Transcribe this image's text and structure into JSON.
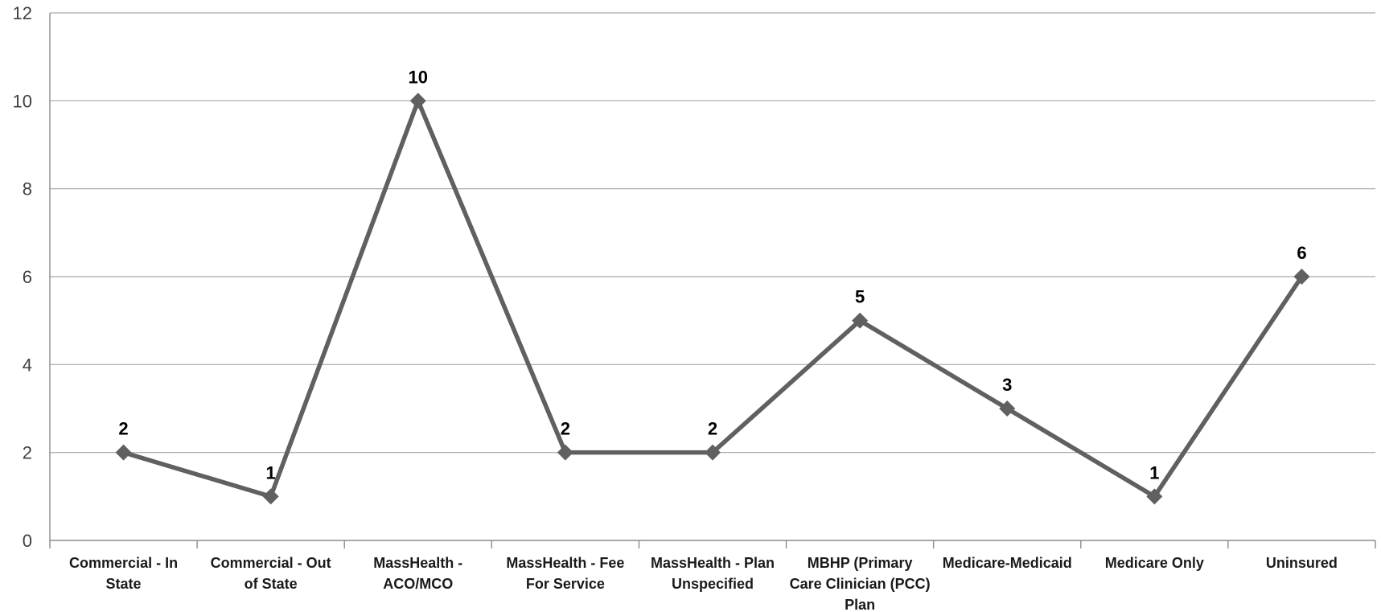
{
  "chart_data": {
    "type": "line",
    "title": "",
    "xlabel": "",
    "ylabel": "",
    "ylim": [
      0,
      12
    ],
    "yticks": [
      0,
      2,
      4,
      6,
      8,
      10,
      12
    ],
    "grid": true,
    "legend": "none",
    "categories": [
      [
        "Commercial - In",
        "State"
      ],
      [
        "Commercial - Out",
        "of State"
      ],
      [
        "MassHealth -",
        "ACO/MCO"
      ],
      [
        "MassHealth - Fee",
        "For Service"
      ],
      [
        "MassHealth - Plan",
        "Unspecified"
      ],
      [
        "MBHP (Primary",
        "Care Clinician (PCC)",
        "Plan"
      ],
      [
        "Medicare-Medicaid"
      ],
      [
        "Medicare Only"
      ],
      [
        "Uninsured"
      ]
    ],
    "series": [
      {
        "values": [
          2,
          1,
          10,
          2,
          2,
          5,
          3,
          1,
          6
        ],
        "color": "#606060",
        "marker": "diamond"
      }
    ]
  }
}
